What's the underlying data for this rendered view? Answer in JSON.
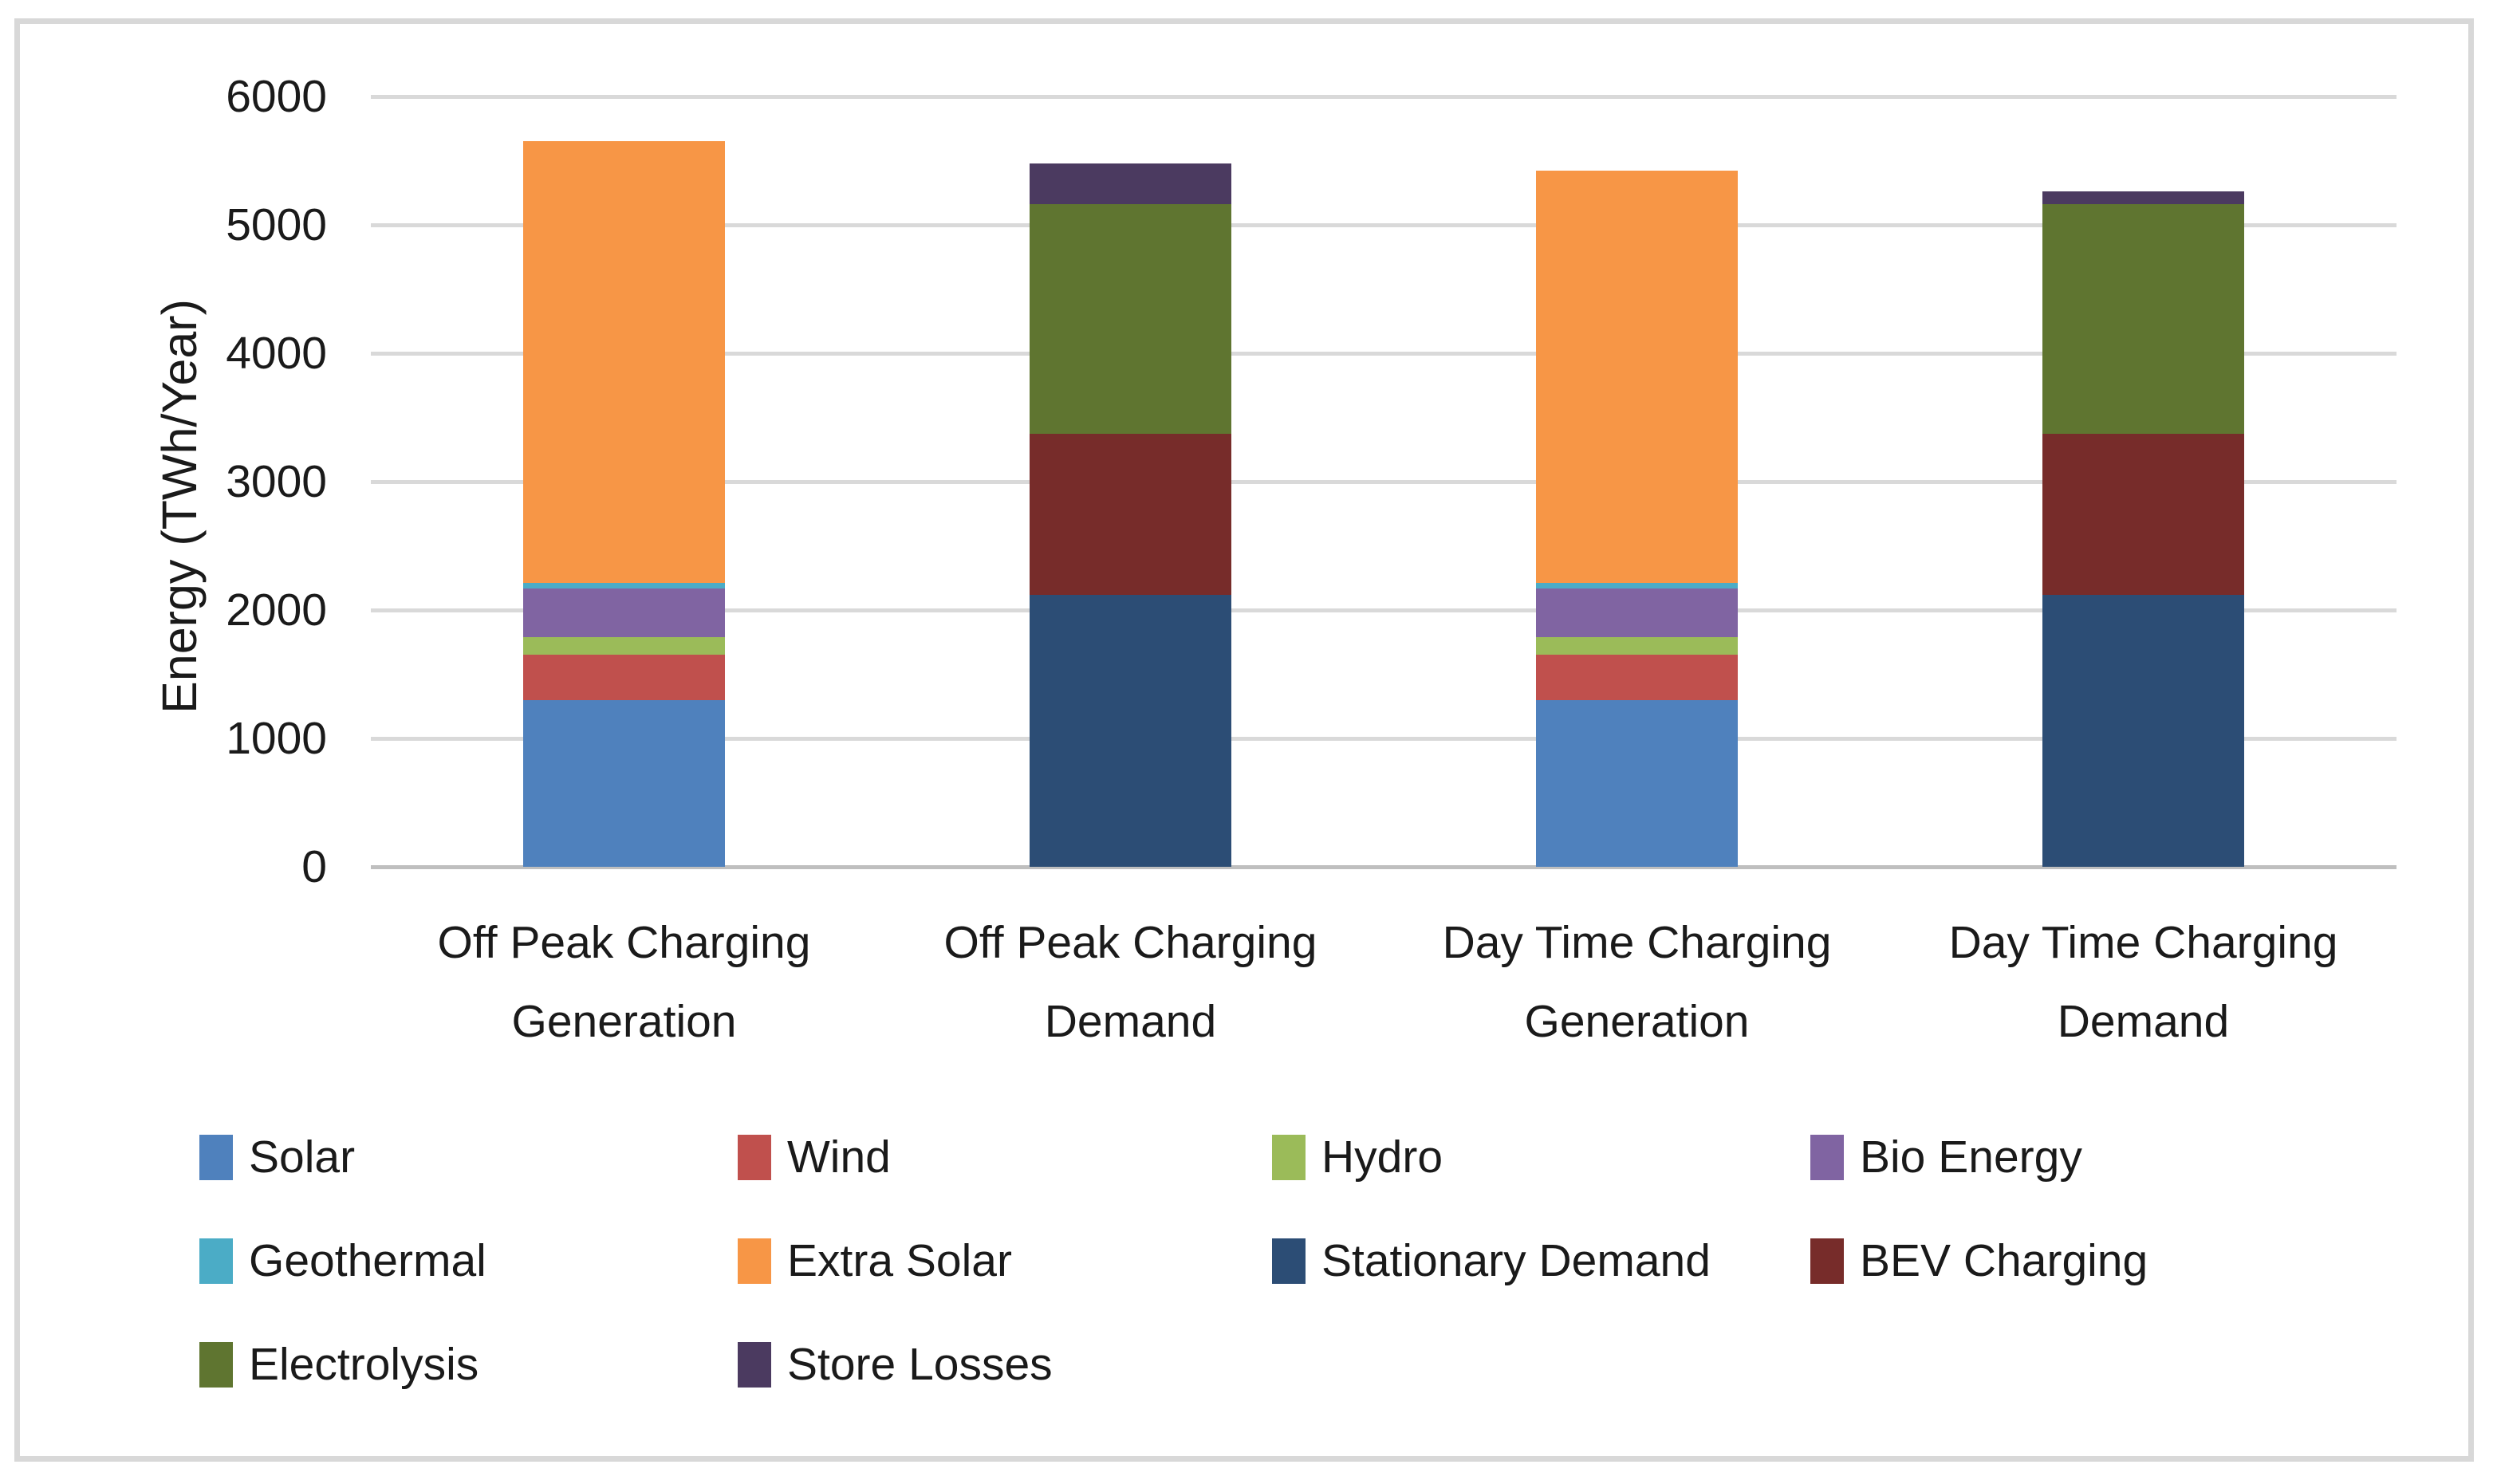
{
  "chart_data": {
    "type": "bar",
    "stacked": true,
    "title": "",
    "xlabel": "",
    "ylabel": "Energy (TWh/Year)",
    "ylim": [
      0,
      6000
    ],
    "yticks": [
      0,
      1000,
      2000,
      3000,
      4000,
      5000,
      6000
    ],
    "grid": true,
    "legend_position": "bottom",
    "categories": [
      "Off Peak Charging Generation",
      "Off Peak Charging Demand",
      "Day Time Charging Generation",
      "Day Time Charging Demand"
    ],
    "category_label_lines": [
      [
        "Off Peak Charging",
        "Generation"
      ],
      [
        "Off Peak Charging",
        "Demand"
      ],
      [
        "Day Time Charging",
        "Generation"
      ],
      [
        "Day Time Charging",
        "Demand"
      ]
    ],
    "series": [
      {
        "name": "Solar",
        "color": "#4F81BD",
        "values": [
          1300,
          0,
          1300,
          0
        ]
      },
      {
        "name": "Wind",
        "color": "#C0504D",
        "values": [
          350,
          0,
          350,
          0
        ]
      },
      {
        "name": "Hydro",
        "color": "#9BBB59",
        "values": [
          140,
          0,
          140,
          0
        ]
      },
      {
        "name": "Bio Energy",
        "color": "#8064A2",
        "values": [
          380,
          0,
          380,
          0
        ]
      },
      {
        "name": "Geothermal",
        "color": "#4BACC6",
        "values": [
          40,
          0,
          40,
          0
        ]
      },
      {
        "name": "Extra Solar",
        "color": "#F79646",
        "values": [
          3440,
          0,
          3210,
          0
        ]
      },
      {
        "name": "Stationary Demand",
        "color": "#2C4D75",
        "values": [
          0,
          2120,
          0,
          2120
        ]
      },
      {
        "name": "BEV Charging",
        "color": "#772C2A",
        "values": [
          0,
          1250,
          0,
          1250
        ]
      },
      {
        "name": "Electrolysis",
        "color": "#5F7530",
        "values": [
          0,
          1790,
          0,
          1790
        ]
      },
      {
        "name": "Store Losses",
        "color": "#4B3A60",
        "values": [
          0,
          320,
          0,
          100
        ]
      }
    ],
    "bar_totals": [
      5650,
      5480,
      5420,
      5260
    ]
  },
  "styles": {
    "grid_color": "#D9D9D9",
    "zero_line_color": "#BFBFBF",
    "frame_border_color": "#D8D8D8",
    "text_color": "#1A1A1A",
    "background": "#FFFFFF"
  }
}
